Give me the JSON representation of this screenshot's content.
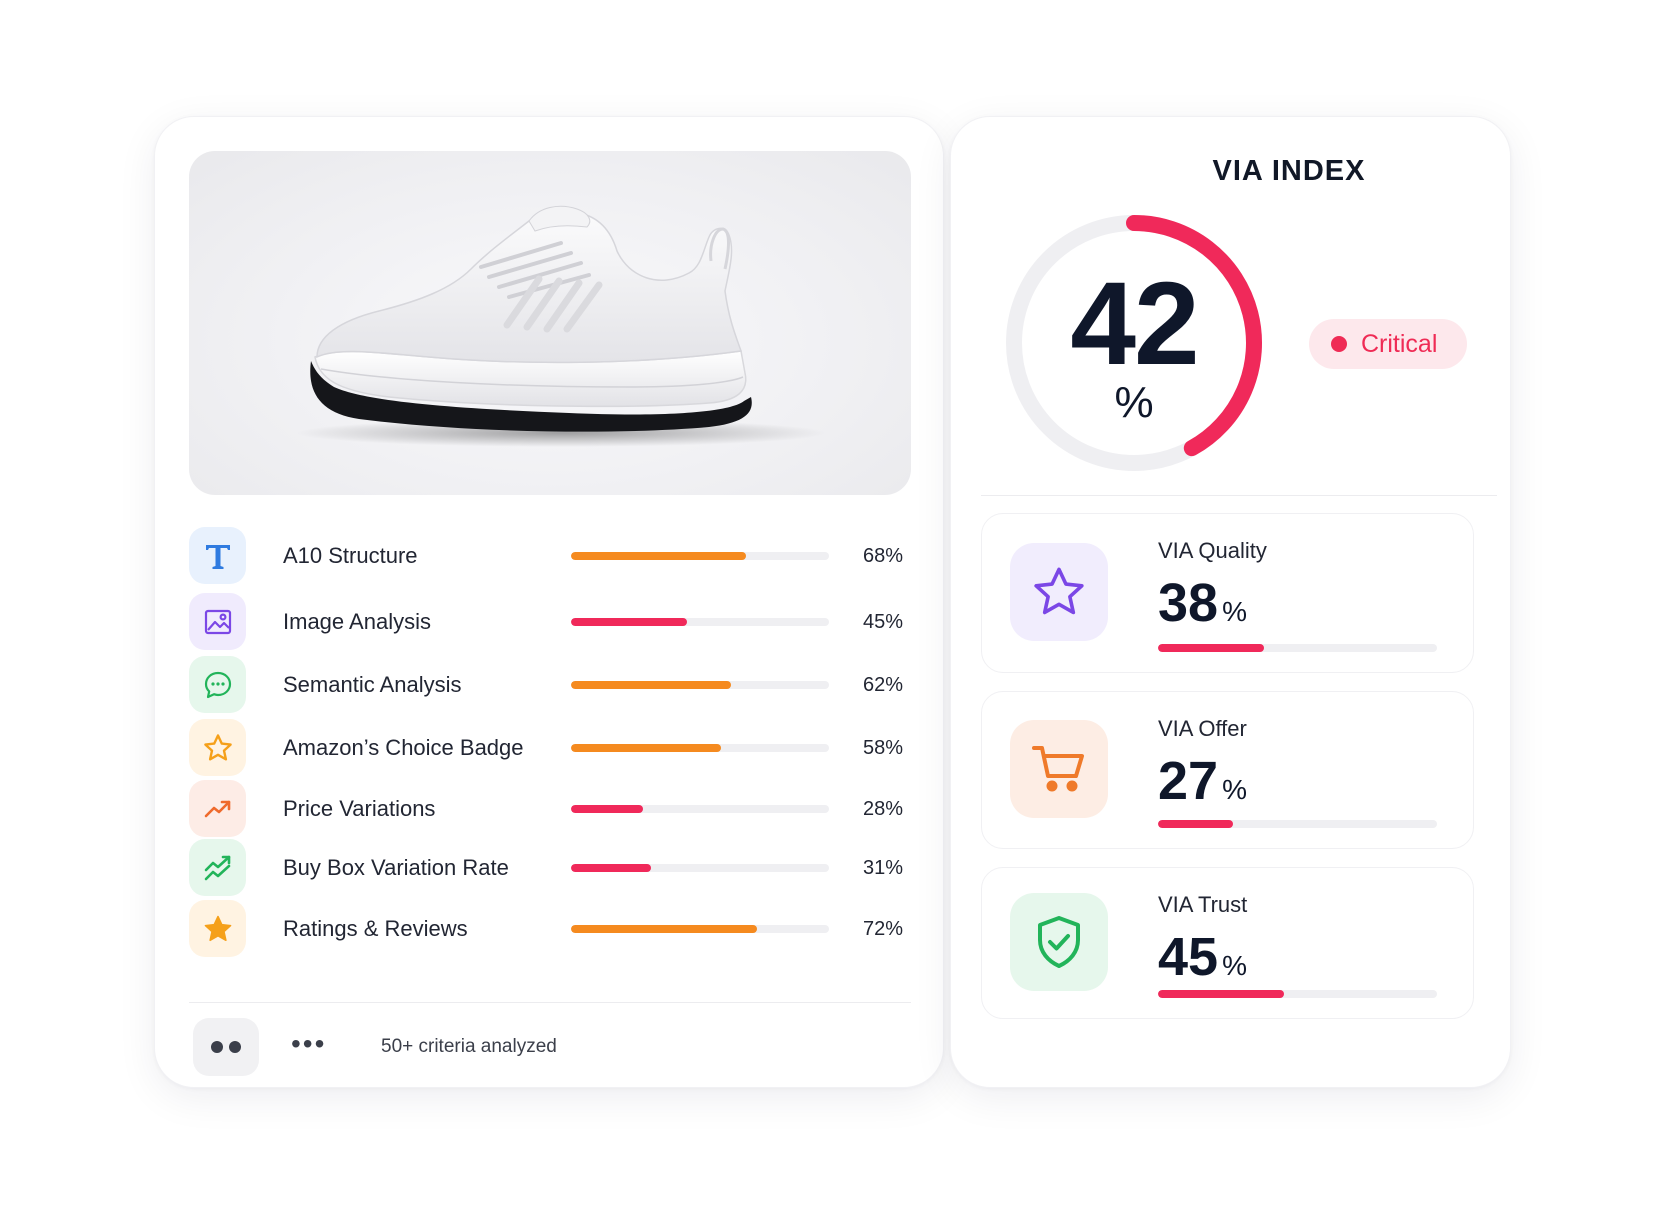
{
  "criteria": {
    "items": [
      {
        "label": "A10 Structure",
        "percent": 68,
        "percent_text": "68%",
        "bar_color": "#f58a1f",
        "icon": "text-t-icon",
        "icon_bg": "#e8f1fd",
        "icon_color": "#2f7be0"
      },
      {
        "label": "Image Analysis",
        "percent": 45,
        "percent_text": "45%",
        "bar_color": "#f0295a",
        "icon": "image-icon",
        "icon_bg": "#f0ebfd",
        "icon_color": "#7b47e6"
      },
      {
        "label": "Semantic Analysis",
        "percent": 62,
        "percent_text": "62%",
        "bar_color": "#f58a1f",
        "icon": "chat-bubble-icon",
        "icon_bg": "#e6f7ec",
        "icon_color": "#22b45a"
      },
      {
        "label": "Amazon’s Choice Badge",
        "percent": 58,
        "percent_text": "58%",
        "bar_color": "#f58a1f",
        "icon": "star-outline-icon",
        "icon_bg": "#fff3e2",
        "icon_color": "#f5a01a"
      },
      {
        "label": "Price Variations",
        "percent": 28,
        "percent_text": "28%",
        "bar_color": "#f0295a",
        "icon": "trending-up-icon",
        "icon_bg": "#fdece6",
        "icon_color": "#ef6a2c"
      },
      {
        "label": "Buy Box Variation Rate",
        "percent": 31,
        "percent_text": "31%",
        "bar_color": "#f0295a",
        "icon": "trend-chart-icon",
        "icon_bg": "#e6f7ec",
        "icon_color": "#22b45a"
      },
      {
        "label": "Ratings & Reviews",
        "percent": 72,
        "percent_text": "72%",
        "bar_color": "#f58a1f",
        "icon": "star-filled-icon",
        "icon_bg": "#fff3e2",
        "icon_color": "#f5a01a"
      }
    ]
  },
  "footer": {
    "ellipsis": "•••",
    "text": "50+ criteria analyzed"
  },
  "via_index": {
    "title": "VIA INDEX",
    "value": "42",
    "unit": "%",
    "percent": 42,
    "gauge_color": "#f0295a",
    "status": "Critical",
    "status_color": "#ef2b55"
  },
  "metrics": [
    {
      "label": "VIA Quality",
      "value": "38",
      "unit": "%",
      "percent": 38,
      "icon": "star-outline-icon",
      "icon_bg": "#f1edfd",
      "icon_color": "#7b47e6"
    },
    {
      "label": "VIA Offer",
      "value": "27",
      "unit": "%",
      "percent": 27,
      "icon": "shopping-cart-icon",
      "icon_bg": "#fdede4",
      "icon_color": "#ef7a2a"
    },
    {
      "label": "VIA Trust",
      "value": "45",
      "unit": "%",
      "percent": 45,
      "icon": "shield-check-icon",
      "icon_bg": "#e6f7ec",
      "icon_color": "#22b45a"
    }
  ]
}
